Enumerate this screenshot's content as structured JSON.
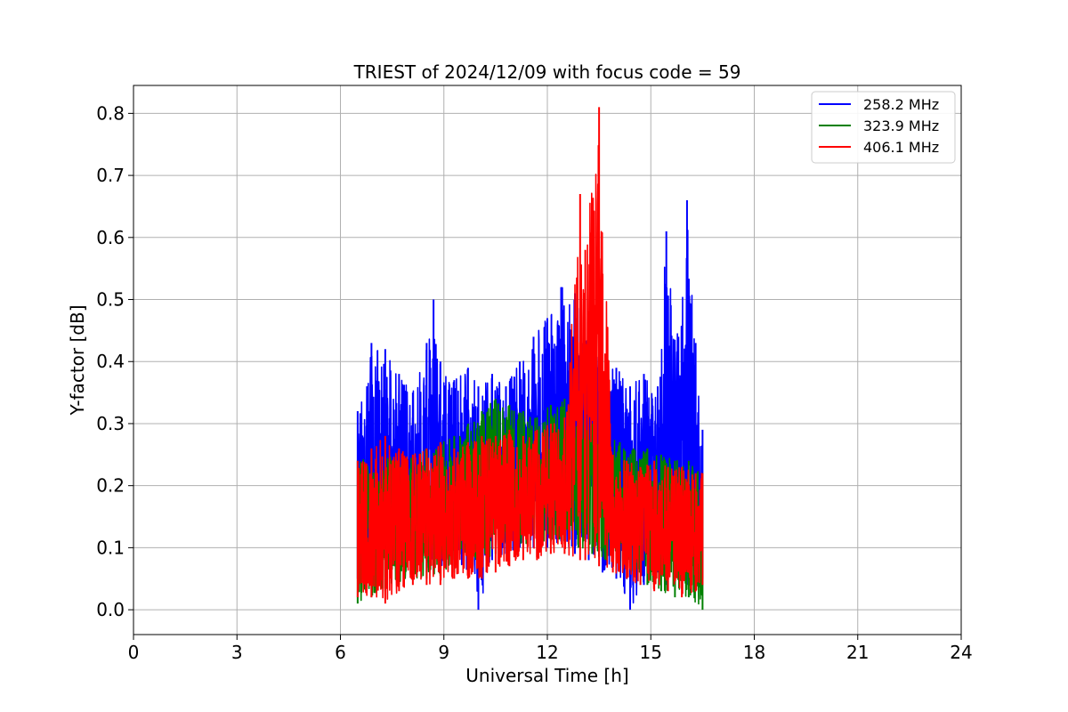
{
  "chart_data": {
    "type": "line",
    "title": "TRIEST of 2024/12/09 with focus code = 59",
    "xlabel": "Universal Time [h]",
    "ylabel": "Y-factor [dB]",
    "xlim": [
      0,
      24
    ],
    "ylim": [
      -0.04,
      0.845
    ],
    "xticks": [
      0,
      3,
      6,
      9,
      12,
      15,
      18,
      21,
      24
    ],
    "xtick_labels": [
      "0",
      "3",
      "6",
      "9",
      "12",
      "15",
      "18",
      "21",
      "24"
    ],
    "yticks": [
      0.0,
      0.1,
      0.2,
      0.3,
      0.4,
      0.5,
      0.6,
      0.7,
      0.8
    ],
    "ytick_labels": [
      "0.0",
      "0.1",
      "0.2",
      "0.3",
      "0.4",
      "0.5",
      "0.6",
      "0.7",
      "0.8"
    ],
    "grid": true,
    "legend_position": "top-right",
    "series": [
      {
        "name": "258.2 MHz",
        "color": "#0000ff",
        "x": [
          6.5,
          6.9,
          7.3,
          7.7,
          8.1,
          8.5,
          8.7,
          8.9,
          9.3,
          9.7,
          10.0,
          10.4,
          10.8,
          11.2,
          11.6,
          12.0,
          12.4,
          12.8,
          13.2,
          13.6,
          14.0,
          14.4,
          14.8,
          15.2,
          15.45,
          15.8,
          16.05,
          16.3,
          16.5
        ],
        "high": [
          0.32,
          0.43,
          0.42,
          0.38,
          0.35,
          0.43,
          0.5,
          0.4,
          0.37,
          0.39,
          0.36,
          0.38,
          0.36,
          0.4,
          0.44,
          0.47,
          0.52,
          0.51,
          0.46,
          0.4,
          0.39,
          0.36,
          0.38,
          0.36,
          0.61,
          0.44,
          0.66,
          0.43,
          0.29
        ],
        "low": [
          0.05,
          0.05,
          0.06,
          0.07,
          0.07,
          0.06,
          0.06,
          0.07,
          0.07,
          0.06,
          0.0,
          0.08,
          0.09,
          0.1,
          0.1,
          0.1,
          0.11,
          0.09,
          0.08,
          0.06,
          0.05,
          0.0,
          0.04,
          0.06,
          0.04,
          0.05,
          0.04,
          0.04,
          0.05
        ]
      },
      {
        "name": "323.9 MHz",
        "color": "#008000",
        "x": [
          6.5,
          6.9,
          7.3,
          7.7,
          8.1,
          8.5,
          8.9,
          9.3,
          9.7,
          10.1,
          10.5,
          10.9,
          11.3,
          11.7,
          12.1,
          12.5,
          12.9,
          13.3,
          13.7,
          14.1,
          14.5,
          14.9,
          15.3,
          15.7,
          16.1,
          16.5
        ],
        "high": [
          0.24,
          0.25,
          0.25,
          0.24,
          0.25,
          0.26,
          0.27,
          0.28,
          0.3,
          0.32,
          0.34,
          0.33,
          0.32,
          0.31,
          0.33,
          0.34,
          0.31,
          0.3,
          0.28,
          0.27,
          0.26,
          0.26,
          0.25,
          0.24,
          0.24,
          0.22
        ],
        "low": [
          0.01,
          0.02,
          0.03,
          0.04,
          0.05,
          0.05,
          0.06,
          0.06,
          0.07,
          0.08,
          0.09,
          0.1,
          0.1,
          0.11,
          0.11,
          0.11,
          0.1,
          0.09,
          0.08,
          0.07,
          0.06,
          0.04,
          0.03,
          0.02,
          0.02,
          0.0
        ]
      },
      {
        "name": "406.1 MHz",
        "color": "#ff0000",
        "x": [
          6.5,
          6.9,
          7.3,
          7.7,
          8.1,
          8.5,
          8.9,
          9.3,
          9.7,
          10.1,
          10.5,
          10.9,
          11.3,
          11.7,
          12.1,
          12.5,
          12.95,
          13.1,
          13.5,
          13.9,
          14.3,
          14.7,
          15.1,
          15.5,
          15.9,
          16.3,
          16.5
        ],
        "high": [
          0.24,
          0.26,
          0.28,
          0.26,
          0.25,
          0.26,
          0.27,
          0.26,
          0.27,
          0.28,
          0.28,
          0.29,
          0.28,
          0.29,
          0.3,
          0.31,
          0.67,
          0.58,
          0.81,
          0.25,
          0.24,
          0.23,
          0.24,
          0.23,
          0.23,
          0.22,
          0.22
        ],
        "low": [
          0.02,
          0.02,
          0.01,
          0.03,
          0.04,
          0.04,
          0.04,
          0.05,
          0.05,
          0.05,
          0.06,
          0.07,
          0.08,
          0.08,
          0.09,
          0.09,
          0.08,
          0.08,
          0.07,
          0.06,
          0.05,
          0.04,
          0.03,
          0.03,
          0.02,
          0.03,
          0.04
        ]
      }
    ]
  }
}
